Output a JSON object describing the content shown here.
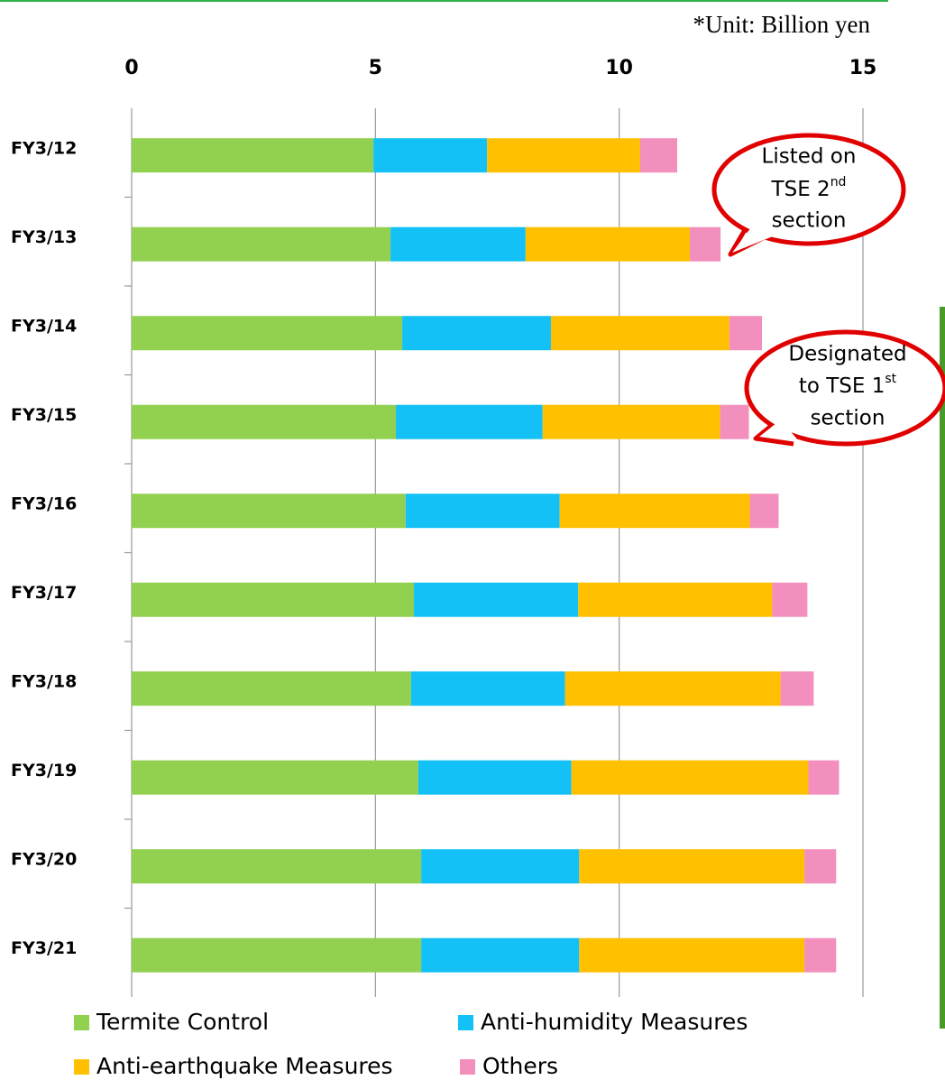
{
  "chart_data": {
    "type": "bar",
    "orientation": "horizontal",
    "stacked": true,
    "note": "*Unit: Billion yen",
    "categories": [
      "FY3/12",
      "FY3/13",
      "FY3/14",
      "FY3/15",
      "FY3/16",
      "FY3/17",
      "FY3/18",
      "FY3/19",
      "FY3/20",
      "FY3/21"
    ],
    "series": [
      {
        "name": "Termite Control",
        "color": "#92d050",
        "values": [
          4.96,
          5.31,
          5.55,
          5.42,
          5.62,
          5.79,
          5.73,
          5.88,
          5.94,
          5.94
        ]
      },
      {
        "name": "Anti-humidity Measures",
        "color": "#13c1f7",
        "values": [
          2.33,
          2.77,
          3.05,
          3.01,
          3.16,
          3.37,
          3.16,
          3.14,
          3.24,
          3.24
        ]
      },
      {
        "name": "Anti-earthquake Measures",
        "color": "#ffc000",
        "values": [
          3.14,
          3.37,
          3.66,
          3.64,
          3.9,
          3.98,
          4.42,
          4.86,
          4.62,
          4.62
        ]
      },
      {
        "name": "Others",
        "color": "#f28fbd",
        "values": [
          0.76,
          0.63,
          0.67,
          0.59,
          0.59,
          0.72,
          0.68,
          0.63,
          0.65,
          0.65
        ]
      }
    ],
    "xlim": [
      0,
      15
    ],
    "xticks": [
      0,
      5,
      10,
      15
    ],
    "grid": true,
    "legend": "bottom",
    "annotations": [
      {
        "line1": "Listed on",
        "line2": "TSE 2",
        "line2_sup": "nd",
        "line3": "section"
      },
      {
        "line1": "Designated",
        "line2": "to TSE 1",
        "line2_sup": "st",
        "line3": "section"
      }
    ]
  }
}
